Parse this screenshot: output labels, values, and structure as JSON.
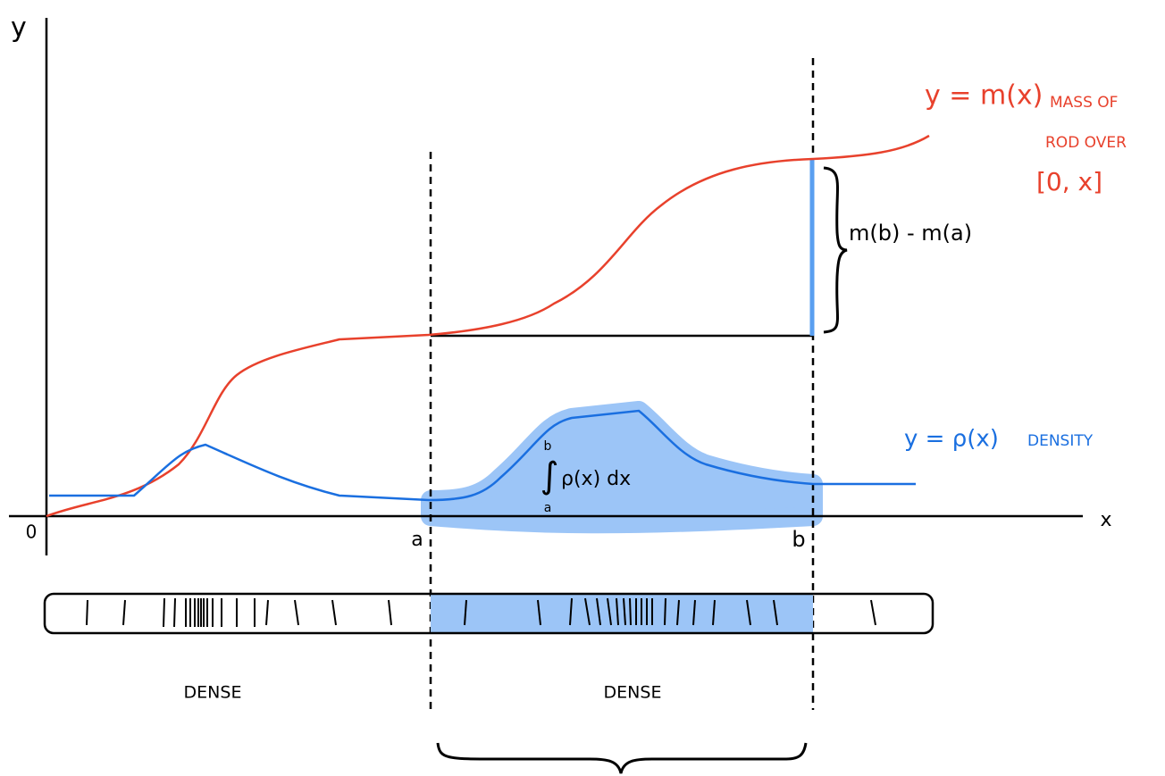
{
  "axes": {
    "y_label": "y",
    "x_label": "x",
    "origin": "0",
    "a": "a",
    "b": "b"
  },
  "curves": {
    "mass": {
      "label": "y = m(x)",
      "description": [
        "MASS OF",
        "ROD OVER",
        "[0, x]"
      ]
    },
    "density": {
      "label": "y = ρ(x)",
      "description": "DENSITY"
    }
  },
  "difference_label": "m(b) - m(a)",
  "integral": {
    "symbol": "∫",
    "upper": "b",
    "lower": "a",
    "integrand": "ρ(x) dx"
  },
  "rod": {
    "regions": [
      "DENSE",
      "DENSE"
    ]
  }
}
